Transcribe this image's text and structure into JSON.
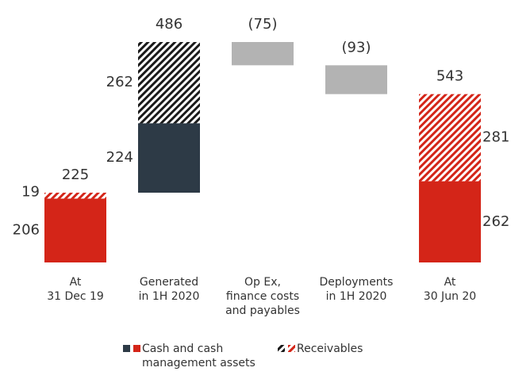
{
  "chart_data": {
    "type": "waterfall",
    "categories": [
      "At\n31 Dec 19",
      "Generated\nin 1H 2020",
      "Op Ex,\nfinance costs\nand payables",
      "Deployments\nin 1H 2020",
      "At\n30 Jun 20"
    ],
    "measures": [
      "total",
      "relative",
      "relative",
      "relative",
      "total"
    ],
    "values": [
      225,
      486,
      -75,
      -93,
      543
    ],
    "value_labels": [
      "225",
      "486",
      "(75)",
      "(93)",
      "543"
    ],
    "decrease_color": "#b3b3b3",
    "series": [
      {
        "name": "Cash and cash\nmanagement assets",
        "values": [
          206,
          224,
          null,
          null,
          262
        ],
        "colors": [
          "#d42518",
          "#2d3a46",
          null,
          null,
          "#d42518"
        ],
        "hatched": false
      },
      {
        "name": "Receivables",
        "values": [
          19,
          262,
          null,
          null,
          281
        ],
        "colors": [
          "#d42518",
          "#1a1a1a",
          null,
          null,
          "#d42518"
        ],
        "hatched": true
      }
    ]
  }
}
